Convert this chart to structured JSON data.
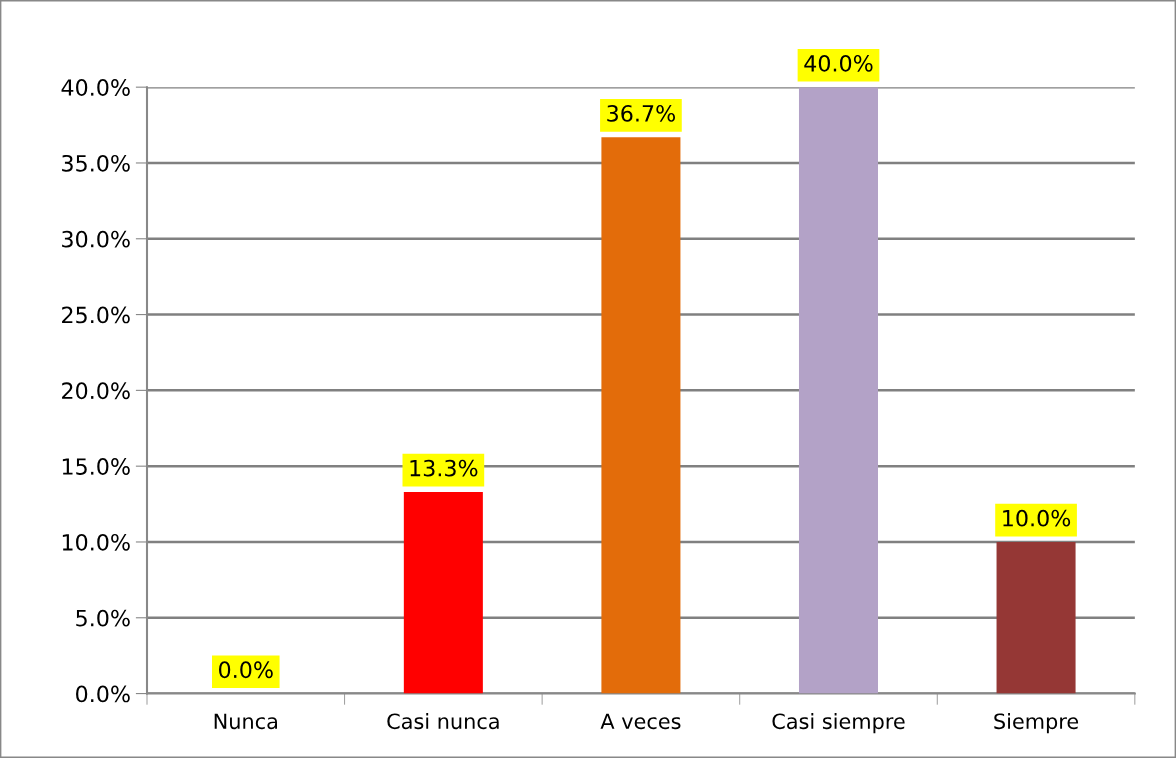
{
  "chart_data": {
    "type": "bar",
    "categories": [
      "Nunca",
      "Casi nunca",
      "A veces",
      "Casi siempre",
      "Siempre"
    ],
    "values": [
      0.0,
      13.3,
      36.7,
      40.0,
      10.0
    ],
    "colors": [
      "#3b6696",
      "#ff0000",
      "#e36c0a",
      "#b3a2c7",
      "#953735"
    ],
    "value_labels": [
      "0.0%",
      "13.3%",
      "36.7%",
      "40.0%",
      "10.0%"
    ],
    "ylim": [
      0,
      40
    ],
    "yticks": [
      {
        "value": 0,
        "label": "0.0%"
      },
      {
        "value": 5,
        "label": "5.0%"
      },
      {
        "value": 10,
        "label": "10.0%"
      },
      {
        "value": 15,
        "label": "15.0%"
      },
      {
        "value": 20,
        "label": "20.0%"
      },
      {
        "value": 25,
        "label": "25.0%"
      },
      {
        "value": 30,
        "label": "30.0%"
      },
      {
        "value": 35,
        "label": "35.0%"
      },
      {
        "value": 40,
        "label": "40.0%"
      }
    ],
    "grid": "y",
    "legend": false
  }
}
